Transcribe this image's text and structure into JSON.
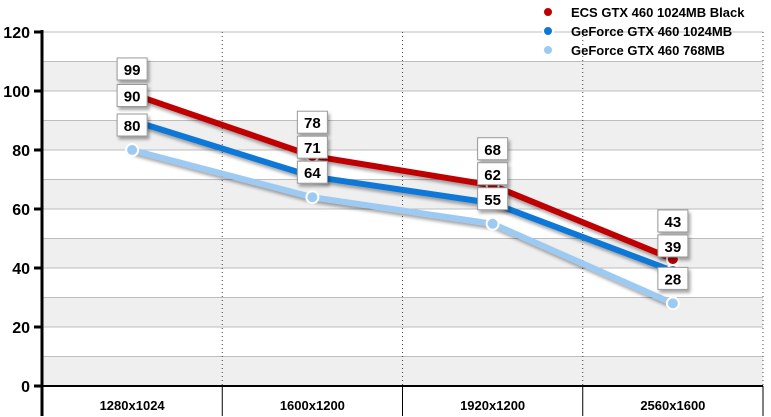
{
  "chart_data": {
    "type": "line",
    "title": "",
    "xlabel": "",
    "ylabel": "",
    "categories": [
      "1280x1024",
      "1600x1200",
      "1920x1200",
      "2560x1600"
    ],
    "ylim": [
      0,
      120
    ],
    "yticks": [
      0,
      20,
      40,
      60,
      80,
      100,
      120
    ],
    "grid": true,
    "legend_position": "top-right",
    "series": [
      {
        "name": "ECS GTX 460 1024MB Black",
        "color": "#c00000",
        "values": [
          99,
          78,
          68,
          43
        ]
      },
      {
        "name": "GeForce GTX 460 1024MB",
        "color": "#0a78d8",
        "values": [
          90,
          71,
          62,
          39
        ]
      },
      {
        "name": "GeForce GTX 460 768MB",
        "color": "#9ccaf2",
        "values": [
          80,
          64,
          55,
          28
        ]
      }
    ]
  }
}
